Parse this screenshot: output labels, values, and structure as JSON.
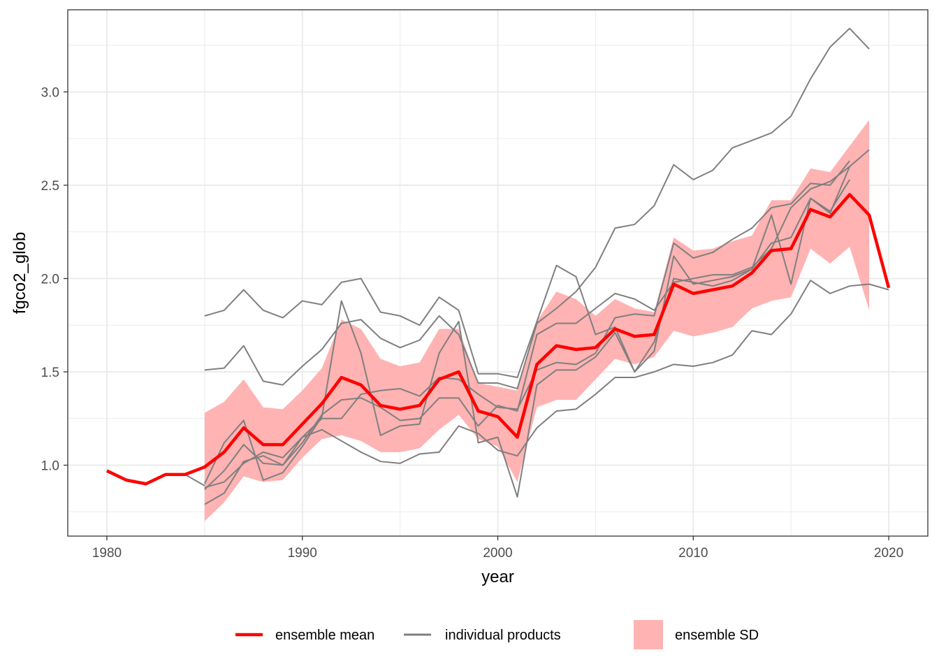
{
  "chart_data": {
    "type": "line",
    "title": "",
    "xlabel": "year",
    "ylabel": "fgco2_glob",
    "xlim": [
      1978,
      2022
    ],
    "ylim": [
      0.62,
      3.44
    ],
    "x_ticks": [
      1980,
      1990,
      2000,
      2010,
      2020
    ],
    "x_tick_labels": [
      "1980",
      "1990",
      "2000",
      "2010",
      "2020"
    ],
    "y_ticks": [
      1.0,
      1.5,
      2.0,
      2.5,
      3.0
    ],
    "y_tick_labels": [
      "1.0",
      "1.5",
      "2.0",
      "2.5",
      "3.0"
    ],
    "grid": true,
    "legend_position": "bottom",
    "colors": {
      "mean": "#ff0000",
      "products": "#7f7f7f",
      "sd": "#ffb3b3"
    },
    "legend": [
      {
        "key": "mean",
        "label": "ensemble mean"
      },
      {
        "key": "products",
        "label": "individual products"
      },
      {
        "key": "sd",
        "label": "ensemble SD"
      }
    ],
    "ensemble_mean": {
      "name": "ensemble mean",
      "x": [
        1980,
        1981,
        1982,
        1983,
        1984,
        1985,
        1986,
        1987,
        1988,
        1989,
        1990,
        1991,
        1992,
        1993,
        1994,
        1995,
        1996,
        1997,
        1998,
        1999,
        2000,
        2001,
        2002,
        2003,
        2004,
        2005,
        2006,
        2007,
        2008,
        2009,
        2010,
        2011,
        2012,
        2013,
        2014,
        2015,
        2016,
        2017,
        2018,
        2019,
        2020
      ],
      "values": [
        0.97,
        0.92,
        0.9,
        0.95,
        0.95,
        0.99,
        1.07,
        1.2,
        1.11,
        1.11,
        1.22,
        1.33,
        1.47,
        1.43,
        1.32,
        1.3,
        1.32,
        1.46,
        1.5,
        1.29,
        1.26,
        1.15,
        1.54,
        1.64,
        1.62,
        1.63,
        1.73,
        1.69,
        1.7,
        1.97,
        1.92,
        1.94,
        1.96,
        2.03,
        2.15,
        2.16,
        2.37,
        2.33,
        2.45,
        2.34,
        1.95
      ]
    },
    "ensemble_sd": {
      "name": "ensemble SD",
      "x": [
        1985,
        1986,
        1987,
        1988,
        1989,
        1990,
        1991,
        1992,
        1993,
        1994,
        1995,
        1996,
        1997,
        1998,
        1999,
        2000,
        2001,
        2002,
        2003,
        2004,
        2005,
        2006,
        2007,
        2008,
        2009,
        2010,
        2011,
        2012,
        2013,
        2014,
        2015,
        2016,
        2017,
        2018,
        2019
      ],
      "upper": [
        1.28,
        1.34,
        1.46,
        1.31,
        1.3,
        1.4,
        1.52,
        1.78,
        1.73,
        1.57,
        1.53,
        1.55,
        1.73,
        1.73,
        1.44,
        1.42,
        1.4,
        1.77,
        1.93,
        1.89,
        1.8,
        1.89,
        1.84,
        1.82,
        2.22,
        2.15,
        2.16,
        2.2,
        2.23,
        2.42,
        2.42,
        2.59,
        2.57,
        2.71,
        2.85
      ],
      "lower": [
        0.7,
        0.8,
        0.94,
        0.91,
        0.92,
        1.04,
        1.14,
        1.16,
        1.13,
        1.07,
        1.07,
        1.09,
        1.19,
        1.27,
        1.14,
        1.1,
        0.91,
        1.31,
        1.35,
        1.35,
        1.46,
        1.57,
        1.54,
        1.58,
        1.72,
        1.69,
        1.71,
        1.74,
        1.84,
        1.88,
        1.9,
        2.16,
        2.08,
        2.17,
        1.83
      ]
    },
    "series": [
      {
        "name": "individual products",
        "x": [
          1984,
          1985
        ],
        "values": [
          0.95,
          0.89
        ]
      },
      {
        "name": "individual products",
        "x": [
          1985,
          1986,
          1987,
          1988,
          1989,
          1990,
          1991,
          1992,
          1993,
          1994,
          1995,
          1996,
          1997,
          1998,
          1999,
          2000,
          2001,
          2002,
          2003,
          2004,
          2005,
          2006,
          2007,
          2008,
          2009,
          2010,
          2011,
          2012,
          2013,
          2014,
          2015,
          2016,
          2017,
          2018,
          2019
        ],
        "values": [
          1.8,
          1.83,
          1.94,
          1.83,
          1.79,
          1.88,
          1.86,
          1.98,
          2.0,
          1.82,
          1.8,
          1.75,
          1.9,
          1.83,
          1.49,
          1.49,
          1.47,
          1.77,
          2.07,
          2.01,
          1.7,
          1.74,
          1.5,
          1.61,
          2.12,
          1.97,
          1.99,
          2.01,
          2.05,
          2.34,
          1.97,
          2.43,
          2.35,
          2.6,
          2.69
        ]
      },
      {
        "name": "individual products",
        "x": [
          1985,
          1986,
          1987,
          1988,
          1989,
          1990,
          1991,
          1992,
          1993,
          1994,
          1995,
          1996,
          1997,
          1998,
          1999,
          2000,
          2001,
          2002,
          2003,
          2004,
          2005,
          2006,
          2007,
          2008,
          2009,
          2010,
          2011,
          2012,
          2013,
          2014,
          2015,
          2016,
          2017,
          2018,
          2019
        ],
        "values": [
          1.51,
          1.52,
          1.64,
          1.45,
          1.43,
          1.53,
          1.62,
          1.76,
          1.78,
          1.68,
          1.63,
          1.67,
          1.8,
          1.7,
          1.44,
          1.44,
          1.41,
          1.76,
          1.84,
          1.93,
          2.06,
          2.27,
          2.29,
          2.39,
          2.61,
          2.53,
          2.58,
          2.7,
          2.74,
          2.78,
          2.87,
          3.07,
          3.24,
          3.34,
          3.23
        ]
      },
      {
        "name": "individual products",
        "x": [
          1985,
          1986,
          1987,
          1988,
          1989,
          1990,
          1991,
          1992,
          1993,
          1994,
          1995,
          1996,
          1997,
          1998,
          1999,
          2000,
          2001,
          2002,
          2003,
          2004,
          2005,
          2006,
          2007,
          2008,
          2009,
          2010,
          2011,
          2012,
          2013,
          2014,
          2015,
          2016,
          2017,
          2018,
          2019,
          2020
        ],
        "values": [
          0.88,
          0.91,
          1.01,
          1.07,
          1.04,
          1.15,
          1.19,
          1.13,
          1.07,
          1.02,
          1.01,
          1.06,
          1.07,
          1.21,
          1.17,
          1.08,
          1.05,
          1.2,
          1.29,
          1.3,
          1.38,
          1.47,
          1.47,
          1.5,
          1.54,
          1.53,
          1.55,
          1.59,
          1.72,
          1.7,
          1.81,
          1.99,
          1.92,
          1.96,
          1.97,
          1.94
        ]
      },
      {
        "name": "individual products",
        "x": [
          1985,
          1986,
          1987,
          1988,
          1989,
          1990,
          1991,
          1992,
          1993,
          1994,
          1995,
          1996,
          1997,
          1998,
          1999,
          2000,
          2001,
          2002,
          2003,
          2004,
          2005,
          2006,
          2007,
          2008,
          2009,
          2010,
          2011,
          2012,
          2013,
          2014,
          2015,
          2016,
          2017,
          2018
        ],
        "values": [
          0.79,
          0.85,
          1.02,
          1.05,
          1.0,
          1.15,
          1.25,
          1.25,
          1.38,
          1.4,
          1.41,
          1.37,
          1.47,
          1.46,
          1.38,
          1.31,
          1.3,
          1.51,
          1.55,
          1.54,
          1.6,
          1.79,
          1.81,
          1.8,
          2.19,
          2.11,
          2.14,
          2.21,
          2.27,
          2.38,
          2.4,
          2.51,
          2.5,
          2.63
        ]
      },
      {
        "name": "individual products",
        "x": [
          1985,
          1986,
          1987,
          1988,
          1989,
          1990,
          1991,
          1992,
          1993,
          1994,
          1995,
          1996,
          1997,
          1998,
          1999,
          2000,
          2001,
          2002,
          2003,
          2004,
          2005,
          2006,
          2007,
          2008,
          2009,
          2010,
          2011,
          2012,
          2013,
          2014,
          2015,
          2016,
          2017,
          2018
        ],
        "values": [
          0.9,
          1.12,
          1.24,
          0.92,
          0.96,
          1.1,
          1.26,
          1.88,
          1.6,
          1.16,
          1.21,
          1.22,
          1.6,
          1.77,
          1.12,
          1.15,
          0.83,
          1.43,
          1.51,
          1.51,
          1.58,
          1.71,
          1.5,
          1.66,
          2.0,
          1.98,
          1.96,
          1.99,
          2.05,
          2.19,
          2.22,
          2.43,
          2.36,
          2.53
        ]
      },
      {
        "name": "individual products",
        "x": [
          1985,
          1986,
          1987,
          1988,
          1989,
          1990,
          1991,
          1992,
          1993,
          1994,
          1995,
          1996,
          1997,
          1998,
          1999,
          2000,
          2001,
          2002,
          2003,
          2004,
          2005,
          2006,
          2007,
          2008,
          2009,
          2010,
          2011,
          2012,
          2013,
          2014,
          2015,
          2016,
          2017,
          2018
        ],
        "values": [
          0.87,
          0.97,
          1.11,
          1.01,
          1.0,
          1.12,
          1.27,
          1.35,
          1.36,
          1.31,
          1.24,
          1.25,
          1.36,
          1.36,
          1.21,
          1.32,
          1.29,
          1.7,
          1.76,
          1.76,
          1.84,
          1.92,
          1.89,
          1.83,
          1.98,
          2.0,
          2.02,
          2.02,
          2.06,
          2.16,
          2.38,
          2.48,
          2.52,
          2.6
        ]
      }
    ]
  }
}
